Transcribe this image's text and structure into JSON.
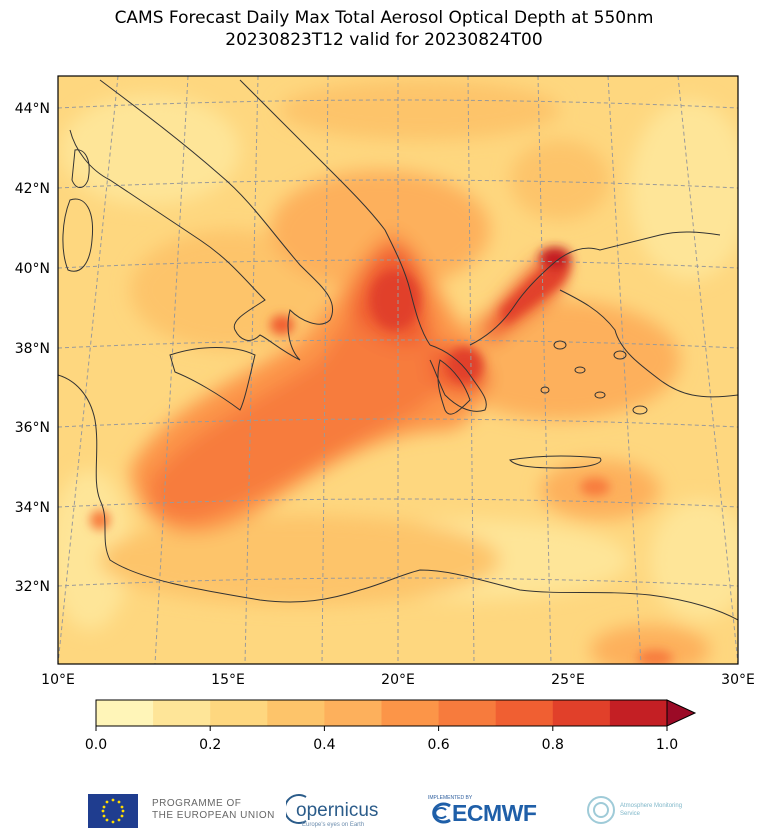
{
  "title": {
    "line1": "CAMS Forecast Daily Max Total Aerosol Optical Depth at 550nm",
    "line2": "20230823T12 valid for 20230824T00"
  },
  "map": {
    "lat_labels": [
      "44°N",
      "42°N",
      "40°N",
      "38°N",
      "36°N",
      "34°N",
      "32°N"
    ],
    "lon_labels": [
      "10°E",
      "15°E",
      "20°E",
      "25°E",
      "30°E"
    ],
    "extent": {
      "lon": [
        10,
        30
      ],
      "lat": [
        30.2,
        44.8
      ]
    },
    "graticule": "dashed"
  },
  "colorbar": {
    "ticks": [
      "0.0",
      "0.2",
      "0.4",
      "0.6",
      "0.8",
      "1.0"
    ],
    "range": [
      0.0,
      1.0
    ],
    "levels": [
      0.0,
      0.1,
      0.2,
      0.3,
      0.4,
      0.5,
      0.6,
      0.7,
      0.8,
      0.9,
      1.0
    ],
    "colors": [
      "#fff5b8",
      "#fee598",
      "#fed77f",
      "#fdc46a",
      "#fdb05c",
      "#fc9548",
      "#f77b3d",
      "#f05f32",
      "#e1402a",
      "#c41f24",
      "#9b0a26"
    ],
    "extend": "max"
  },
  "logos": {
    "eu": "PROGRAMME OF\nTHE EUROPEAN UNION",
    "eu_line1": "PROGRAMME OF",
    "eu_line2": "THE EUROPEAN UNION",
    "copernicus": "opernicus",
    "copernicus_sub": "Europe's eyes on Earth",
    "ecmwf_impl": "IMPLEMENTED BY",
    "ecmwf": "ECMWF",
    "cams": "Atmosphere Monitoring Service"
  }
}
